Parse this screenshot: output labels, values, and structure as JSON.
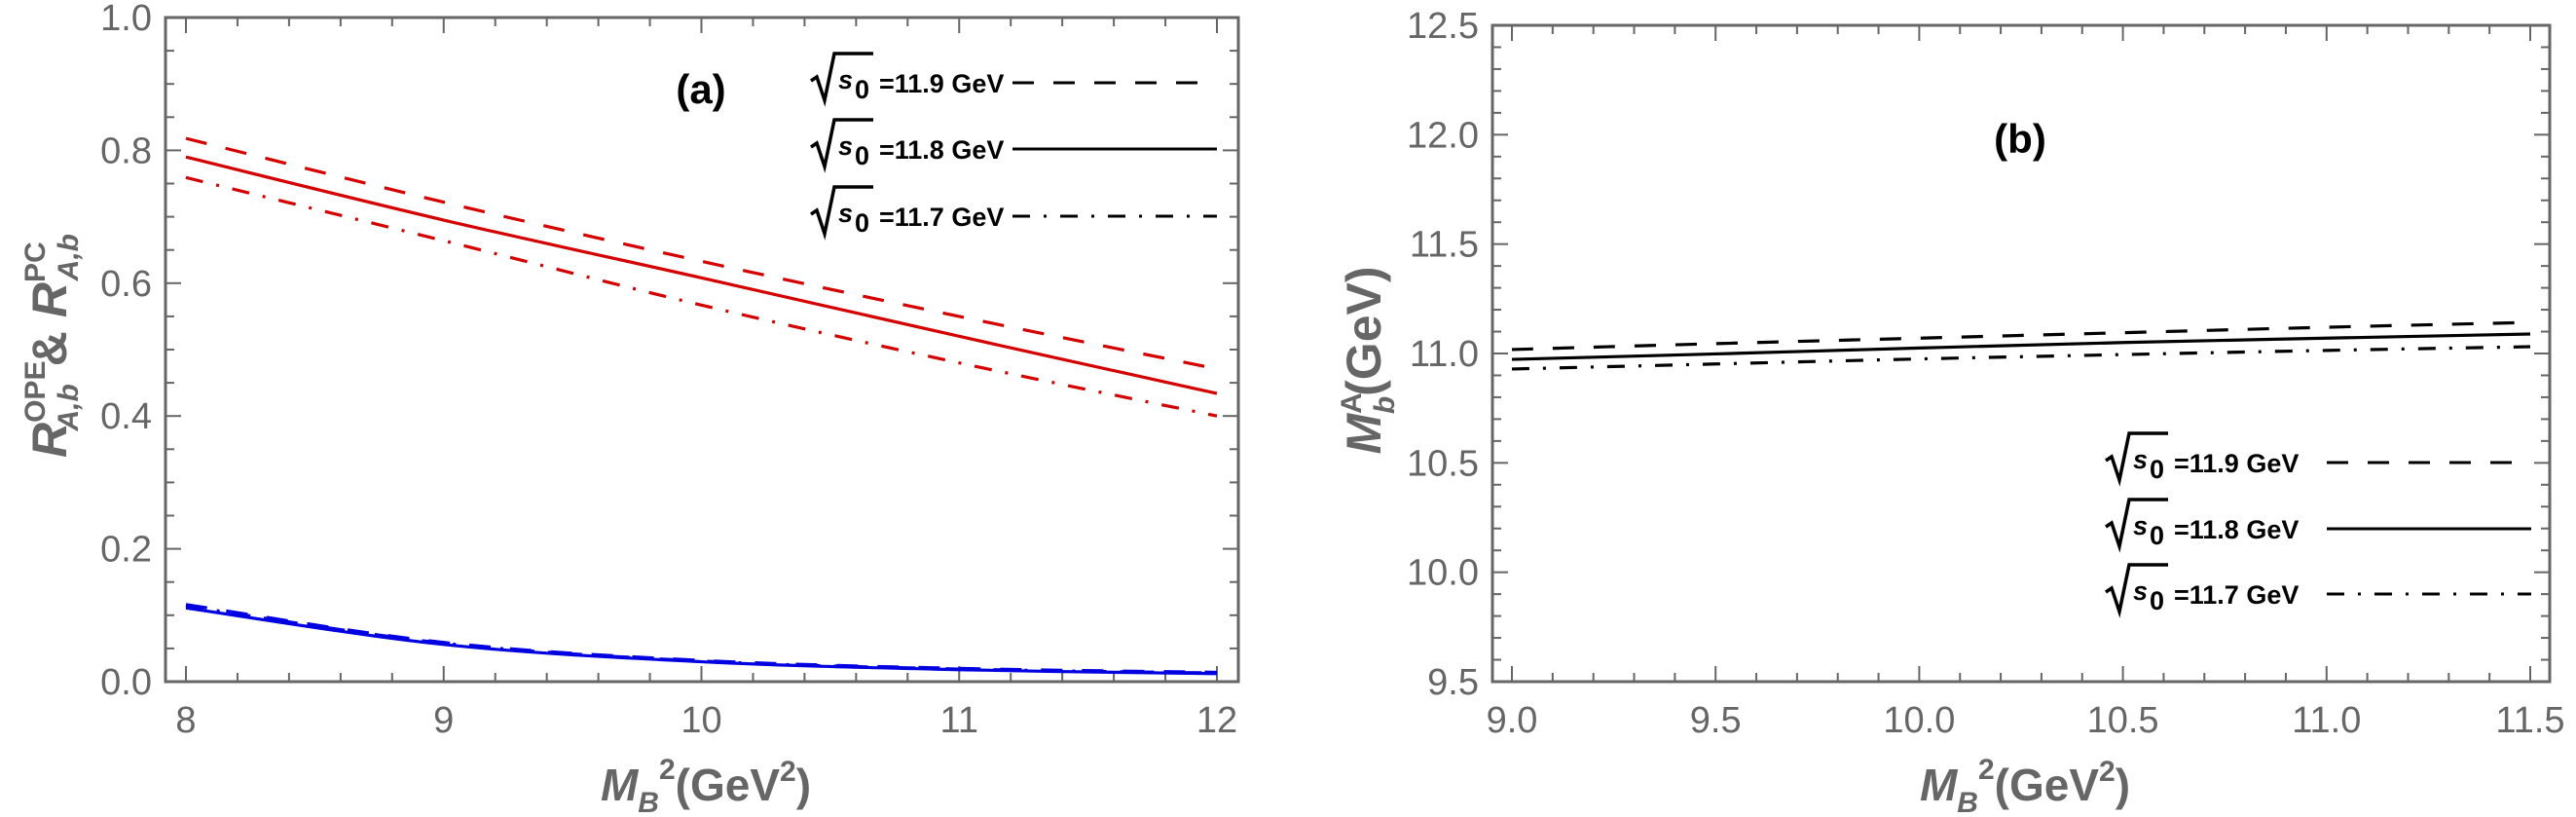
{
  "chart_data": [
    {
      "type": "line",
      "panel_label": "(a)",
      "xlabel": {
        "main": "M",
        "sub": "B",
        "sup": "2",
        "unit": "(GeV",
        "unit_sup": "2",
        "close": ")"
      },
      "ylabel": {
        "part1": "R",
        "part1_sup": "OPE",
        "part1_sub": "A,b",
        "amp": "&",
        "part2": "R",
        "part2_sup": "PC",
        "part2_sub": "A,b"
      },
      "xlim": [
        8,
        12
      ],
      "ylim": [
        0,
        1.0
      ],
      "xticks": [
        "8",
        "9",
        "10",
        "11",
        "12"
      ],
      "xtick_values": [
        8,
        9,
        10,
        11,
        12
      ],
      "x_minor_step": 0.2,
      "yticks": [
        "0.0",
        "0.2",
        "0.4",
        "0.6",
        "0.8",
        "1.0"
      ],
      "ytick_values": [
        0,
        0.2,
        0.4,
        0.6,
        0.8,
        1.0
      ],
      "y_minor_step": 0.05,
      "grid": false,
      "legend_position": "top-right",
      "x": [
        8,
        9,
        10,
        11,
        12
      ],
      "series": [
        {
          "name": "R^PC, sqrt(s0)=11.9 GeV",
          "style": "dashed",
          "color": "#d40000",
          "values": [
            0.818,
            0.722,
            0.633,
            0.55,
            0.471
          ]
        },
        {
          "name": "R^PC, sqrt(s0)=11.8 GeV",
          "style": "solid",
          "color": "#d40000",
          "values": [
            0.79,
            0.695,
            0.608,
            0.52,
            0.434
          ]
        },
        {
          "name": "R^PC, sqrt(s0)=11.7 GeV",
          "style": "dashdot",
          "color": "#d40000",
          "values": [
            0.759,
            0.664,
            0.567,
            0.48,
            0.4
          ]
        },
        {
          "name": "R^OPE, sqrt(s0)=11.9 GeV",
          "style": "dashed",
          "color": "#0000e0",
          "values": [
            0.116,
            0.059,
            0.032,
            0.02,
            0.014
          ]
        },
        {
          "name": "R^OPE, sqrt(s0)=11.8 GeV",
          "style": "solid",
          "color": "#0000e0",
          "values": [
            0.111,
            0.056,
            0.03,
            0.018,
            0.012
          ]
        },
        {
          "name": "R^OPE, sqrt(s0)=11.7 GeV",
          "style": "dashdot",
          "color": "#0000e0",
          "values": [
            0.114,
            0.058,
            0.031,
            0.019,
            0.013
          ]
        }
      ],
      "legend": [
        {
          "prefix": "s",
          "prefix_sub": "0",
          "text": "=11.9 GeV",
          "style": "dashed"
        },
        {
          "prefix": "s",
          "prefix_sub": "0",
          "text": "=11.8 GeV",
          "style": "solid"
        },
        {
          "prefix": "s",
          "prefix_sub": "0",
          "text": "=11.7 GeV",
          "style": "dashdot"
        }
      ]
    },
    {
      "type": "line",
      "panel_label": "(b)",
      "xlabel": {
        "main": "M",
        "sub": "B",
        "sup": "2",
        "unit": "(GeV",
        "unit_sup": "2",
        "close": ")"
      },
      "ylabel": {
        "main": "M",
        "sup": "A",
        "sub": "b",
        "unit": "(GeV)"
      },
      "xlim": [
        9.0,
        11.5
      ],
      "ylim": [
        9.5,
        12.5
      ],
      "xticks": [
        "9.0",
        "9.5",
        "10.0",
        "10.5",
        "11.0",
        "11.5"
      ],
      "xtick_values": [
        9.0,
        9.5,
        10.0,
        10.5,
        11.0,
        11.5
      ],
      "x_minor_step": 0.1,
      "yticks": [
        "9.5",
        "10.0",
        "10.5",
        "11.0",
        "11.5",
        "12.0",
        "12.5"
      ],
      "ytick_values": [
        9.5,
        10.0,
        10.5,
        11.0,
        11.5,
        12.0,
        12.5
      ],
      "y_minor_step": 0.1,
      "grid": false,
      "legend_position": "bottom-right",
      "x": [
        9.0,
        9.5,
        10.0,
        10.5,
        11.0,
        11.5
      ],
      "series": [
        {
          "name": "sqrt(s0)=11.9 GeV",
          "style": "dashed",
          "color": "#000000",
          "values": [
            11.018,
            11.045,
            11.07,
            11.095,
            11.12,
            11.142
          ]
        },
        {
          "name": "sqrt(s0)=11.8 GeV",
          "style": "solid",
          "color": "#000000",
          "values": [
            10.973,
            10.998,
            11.025,
            11.05,
            11.07,
            11.089
          ]
        },
        {
          "name": "sqrt(s0)=11.7 GeV",
          "style": "dashdot",
          "color": "#000000",
          "values": [
            10.929,
            10.952,
            10.975,
            10.995,
            11.014,
            11.031
          ]
        }
      ],
      "legend": [
        {
          "prefix": "s",
          "prefix_sub": "0",
          "text": "=11.9 GeV",
          "style": "dashed"
        },
        {
          "prefix": "s",
          "prefix_sub": "0",
          "text": "=11.8 GeV",
          "style": "solid"
        },
        {
          "prefix": "s",
          "prefix_sub": "0",
          "text": "=11.7 GeV",
          "style": "dashdot"
        }
      ]
    }
  ]
}
